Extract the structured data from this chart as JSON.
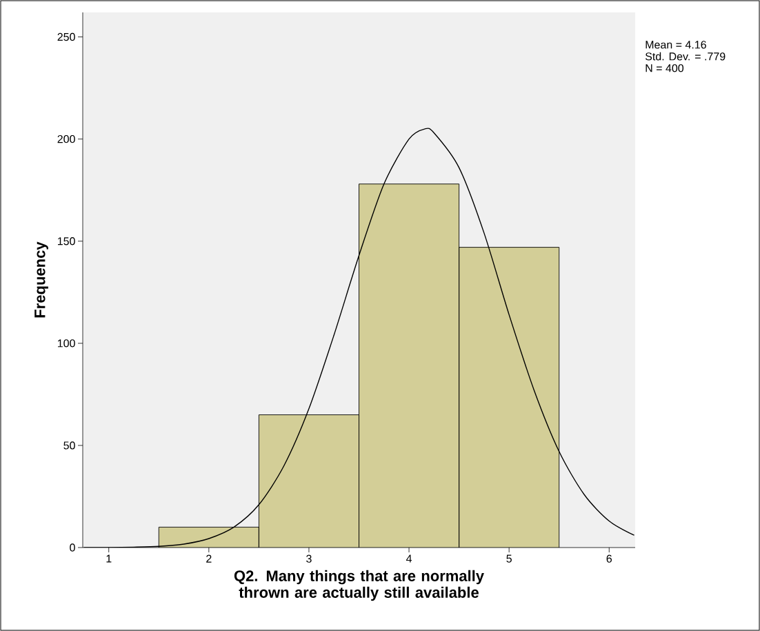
{
  "chart_data": {
    "type": "histogram",
    "bins": [
      1.5,
      2.5,
      3.5,
      4.5,
      5.5
    ],
    "values": [
      10,
      65,
      178,
      147
    ],
    "color": "#d3ce97",
    "series": [
      {
        "type": "line",
        "color": "#000000",
        "x": [
          0.75,
          1.0,
          1.25,
          1.5,
          1.75,
          2.0,
          2.25,
          2.5,
          2.75,
          3.0,
          3.25,
          3.5,
          3.75,
          4.0,
          4.16,
          4.25,
          4.5,
          4.75,
          5.0,
          5.25,
          5.5,
          5.75,
          6.0,
          6.25
        ],
        "values": [
          0,
          0,
          0.2,
          0.6,
          1.7,
          4.4,
          10,
          21,
          40,
          68,
          104,
          143,
          178,
          200,
          205,
          203,
          186,
          154,
          114,
          77,
          47,
          26,
          13,
          6
        ]
      }
    ],
    "xlabel": "Q2. Many things that are normally thrown are actually still available",
    "ylabel": "Frequency",
    "xlim": [
      0.74,
      6.26
    ],
    "ylim": [
      0,
      262
    ],
    "xticks": [
      1,
      2,
      3,
      4,
      5,
      6
    ],
    "yticks": [
      0,
      50,
      100,
      150,
      200,
      250
    ],
    "grid": false,
    "annotations": [
      "Mean = 4.16",
      "Std. Dev. = .779",
      "N = 400"
    ]
  }
}
